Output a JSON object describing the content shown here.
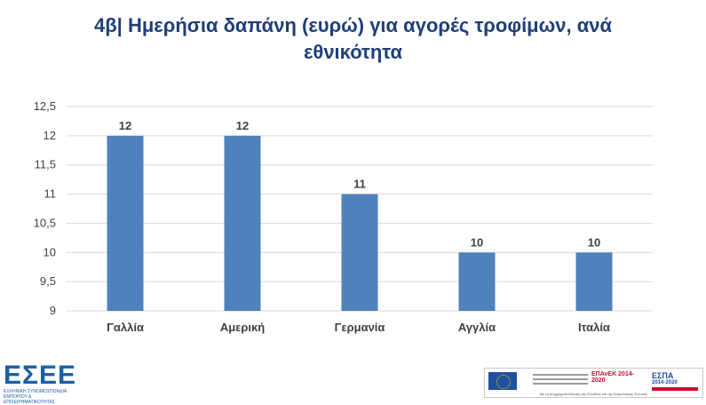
{
  "title": {
    "line1": "4β| Ημερήσια δαπάνη (ευρώ) για αγορές τροφίμων, ανά",
    "line2": "εθνικότητα"
  },
  "colors": {
    "bar": "#4f81bd",
    "title": "#1f3f7a",
    "grid": "#d9d9d9",
    "axis_text": "#404040"
  },
  "chart_data": {
    "type": "bar",
    "categories": [
      "Γαλλία",
      "Αμερική",
      "Γερμανία",
      "Αγγλία",
      "Ιταλία"
    ],
    "values": [
      12,
      12,
      11,
      10,
      10
    ],
    "data_labels": [
      "12",
      "12",
      "11",
      "10",
      "10"
    ],
    "y_ticks": [
      "9",
      "9,5",
      "10",
      "10,5",
      "11",
      "11,5",
      "12",
      "12,5"
    ],
    "ylim": [
      9,
      12.5
    ],
    "grid": true,
    "legend": "none"
  },
  "logos": {
    "esee": "ΕΣΕΕ",
    "esee_sub": "ΕΛΛΗΝΙΚΗ ΣΥΝΟΜΟΣΠΟΝΔΙΑ ΕΜΠΟΡΙΟΥ & ΕΠΙΧΕΙΡΗΜΑΤΙΚΟΤΗΤΑΣ",
    "epanek": "ΕΠΑνΕΚ 2014-2020",
    "espa": "ΕΣΠΑ",
    "espa_years": "2014-2020",
    "banner_footer": "Με τη συγχρηματοδότηση της Ελλάδας και της Ευρωπαϊκής Ένωσης"
  }
}
